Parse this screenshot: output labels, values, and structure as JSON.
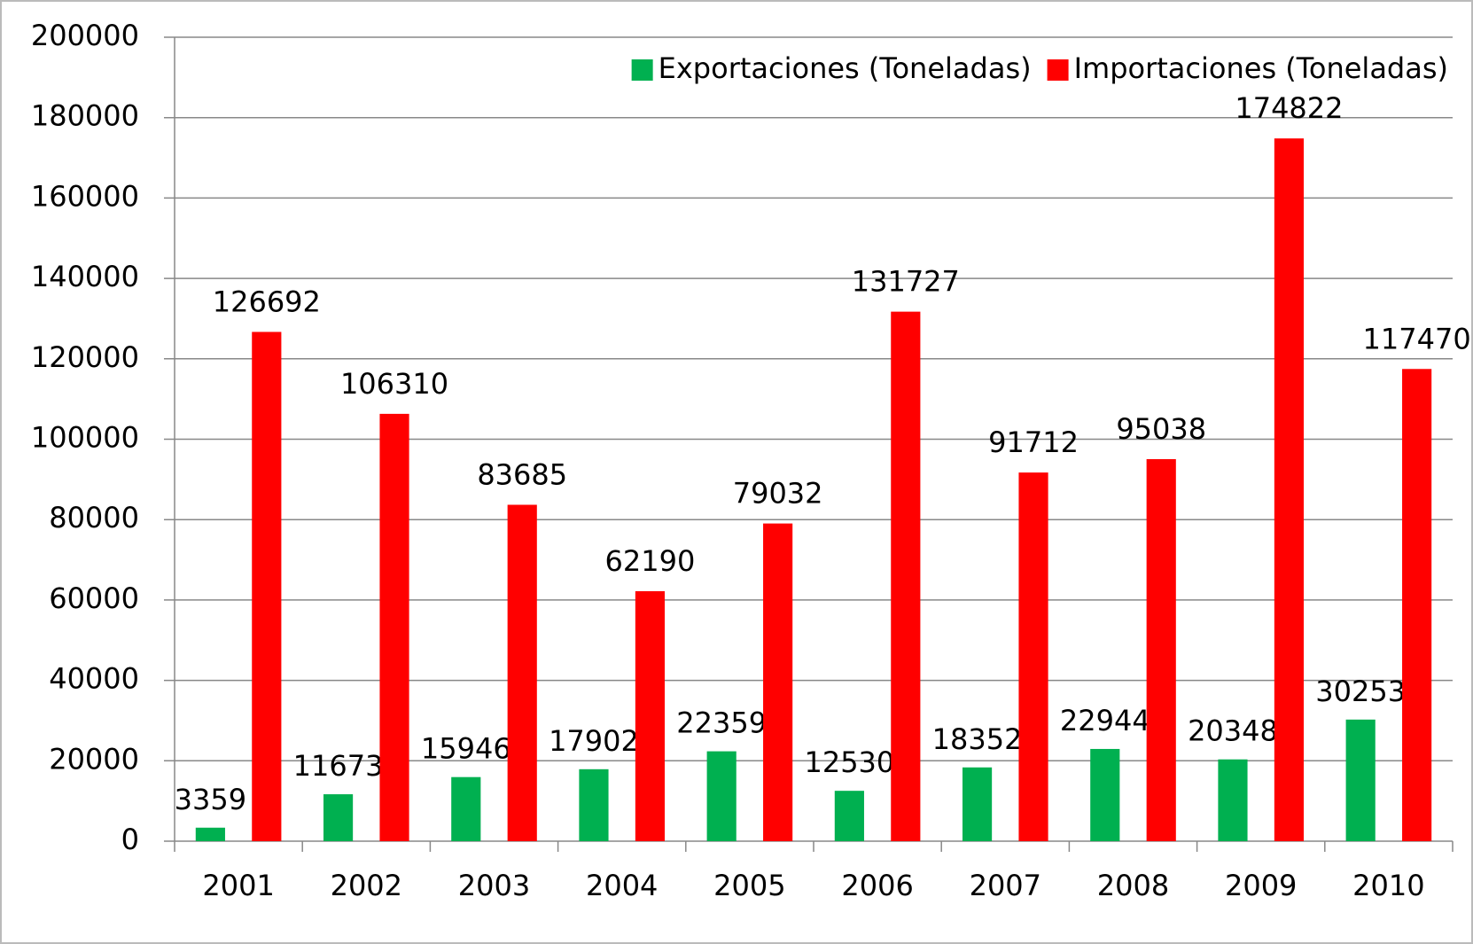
{
  "chart_data": {
    "type": "bar",
    "categories": [
      "2001",
      "2002",
      "2003",
      "2004",
      "2005",
      "2006",
      "2007",
      "2008",
      "2009",
      "2010"
    ],
    "series": [
      {
        "name": "Exportaciones (Toneladas)",
        "color": "#00b050",
        "values": [
          3359,
          11673,
          15946,
          17902,
          22359,
          12530,
          18352,
          22944,
          20348,
          30253
        ]
      },
      {
        "name": "Importaciones (Toneladas)",
        "color": "#ff0000",
        "values": [
          126692,
          106310,
          83685,
          62190,
          79032,
          131727,
          91712,
          95038,
          174822,
          117470
        ]
      }
    ],
    "ylim": [
      0,
      200000
    ],
    "yticks": [
      0,
      20000,
      40000,
      60000,
      80000,
      100000,
      120000,
      140000,
      160000,
      180000,
      200000
    ],
    "grid": true,
    "legend": "top-right"
  }
}
